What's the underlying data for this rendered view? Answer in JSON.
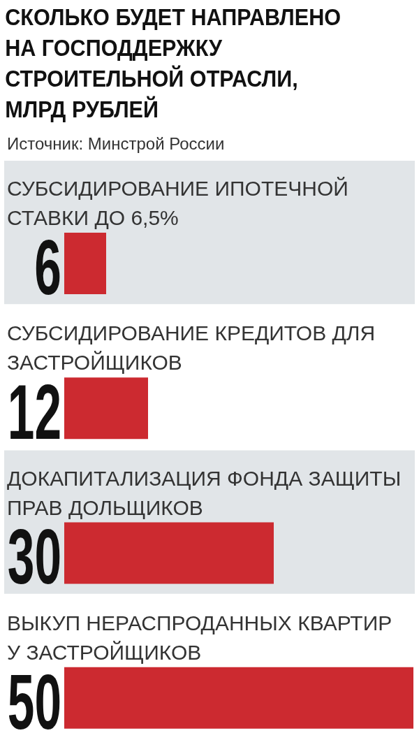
{
  "chart_data": {
    "type": "bar",
    "orientation": "horizontal",
    "title": "СКОЛЬКО БУДЕТ НАПРАВЛЕНО НА ГОСПОДДЕРЖКУ СТРОИТЕЛЬНОЙ ОТРАСЛИ, МЛРД РУБЛЕЙ",
    "annotations": [
      "Источник: Минстрой России"
    ],
    "categories": [
      "СУБСИДИРОВАНИЕ ИПОТЕЧНОЙ СТАВКИ ДО 6,5%",
      "СУБСИДИРОВАНИЕ КРЕДИТОВ ДЛЯ ЗАСТРОЙЩИКОВ",
      "ДОКАПИТАЛИЗАЦИЯ ФОНДА ЗАЩИТЫ ПРАВ ДОЛЬЩИКОВ",
      "ВЫКУП НЕРАСПРОДАННЫХ КВАРТИР У ЗАСТРОЙЩИКОВ"
    ],
    "values": [
      6,
      12,
      30,
      50
    ],
    "color": "#cc2a30",
    "xlim": [
      0,
      50
    ],
    "data_labels": true
  }
}
